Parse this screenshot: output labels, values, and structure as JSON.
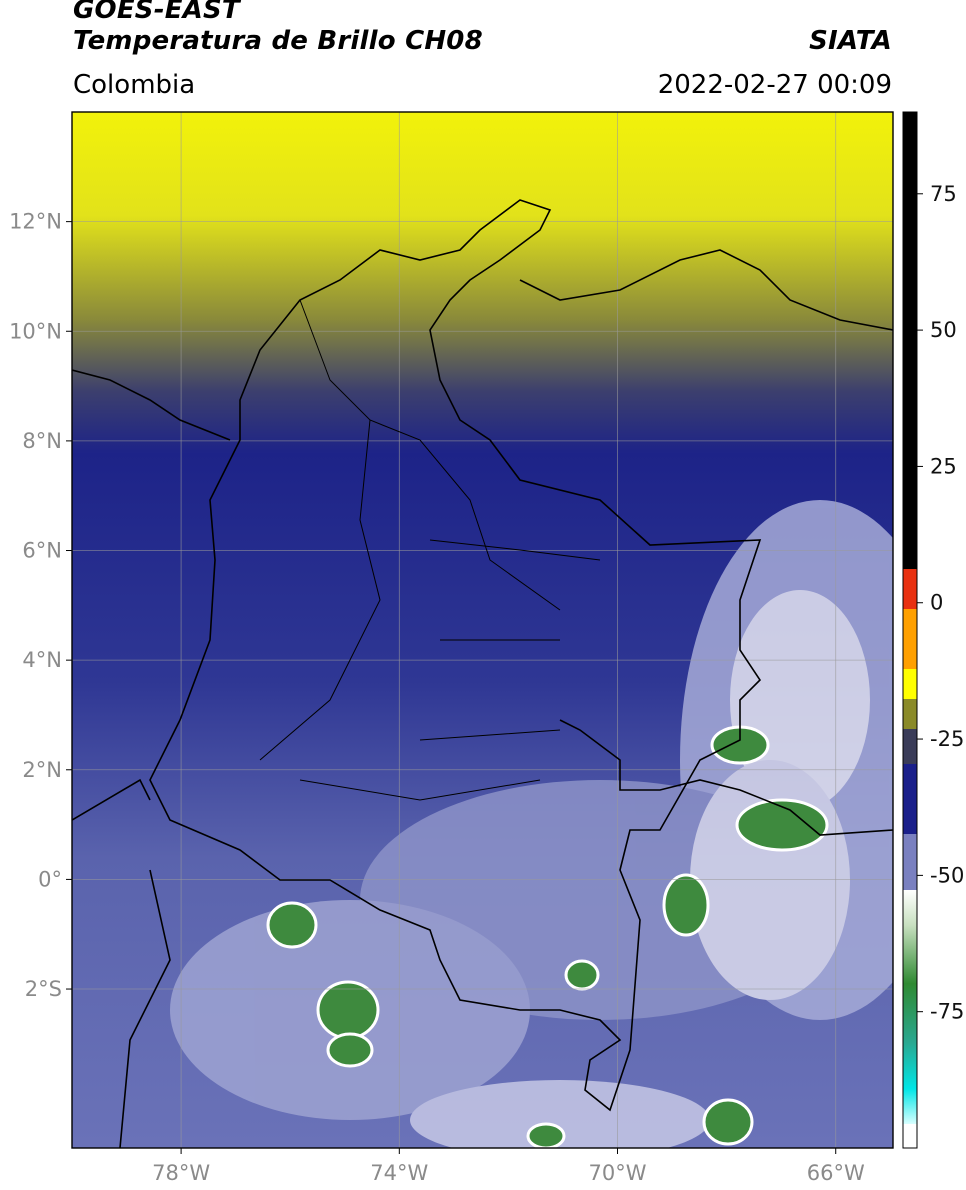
{
  "header": {
    "satellite": "GOES-EAST",
    "product": "Temperatura de Brillo CH08",
    "organization": "SIATA",
    "region": "Colombia",
    "datetime": "2022-02-27 00:09"
  },
  "axes": {
    "latitude_ticks": [
      {
        "lat": 12,
        "label": "12°N"
      },
      {
        "lat": 10,
        "label": "10°N"
      },
      {
        "lat": 8,
        "label": "8°N"
      },
      {
        "lat": 6,
        "label": "6°N"
      },
      {
        "lat": 4,
        "label": "4°N"
      },
      {
        "lat": 2,
        "label": "2°N"
      },
      {
        "lat": 0,
        "label": "0°"
      },
      {
        "lat": -2,
        "label": "2°S"
      }
    ],
    "longitude_ticks": [
      {
        "lon": -78,
        "label": "78°W"
      },
      {
        "lon": -74,
        "label": "74°W"
      },
      {
        "lon": -70,
        "label": "70°W"
      },
      {
        "lon": -66,
        "label": "66°W"
      }
    ]
  },
  "colorbar": {
    "ticks": [
      {
        "value": 75,
        "label": "75"
      },
      {
        "value": 50,
        "label": "50"
      },
      {
        "value": 25,
        "label": "25"
      },
      {
        "value": 0,
        "label": "0"
      },
      {
        "value": -25,
        "label": "-25"
      },
      {
        "value": -50,
        "label": "-50"
      },
      {
        "value": -75,
        "label": "-75"
      }
    ],
    "colors": {
      "black": "#000000",
      "red": "#e01a00",
      "orange": "#ff8a00",
      "yellow": "#ffff00",
      "olive": "#8a8a28",
      "dark_gray": "#4a4a52",
      "navy": "#1a1f8a",
      "slate": "#7a80c0",
      "white": "#ffffff",
      "green": "#2f8a32",
      "teal": "#2aa890",
      "cyan": "#00e6e6"
    }
  }
}
